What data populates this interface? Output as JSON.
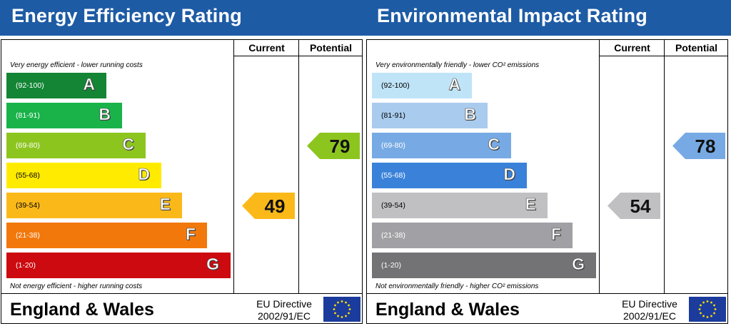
{
  "chart_data": [
    {
      "type": "bar",
      "title": "Energy Efficiency Rating",
      "columns": [
        "Current",
        "Potential"
      ],
      "top_note": "Very energy efficient - lower running costs",
      "bottom_note": "Not energy efficient - higher running costs",
      "bands": [
        {
          "letter": "A",
          "range": "(92-100)",
          "color": "#138535",
          "text_color": "#ffffff"
        },
        {
          "letter": "B",
          "range": "(81-91)",
          "color": "#19b34a",
          "text_color": "#ffffff"
        },
        {
          "letter": "C",
          "range": "(69-80)",
          "color": "#8dc51f",
          "text_color": "#ffffff"
        },
        {
          "letter": "D",
          "range": "(55-68)",
          "color": "#ffeb00",
          "text_color": "#000000"
        },
        {
          "letter": "E",
          "range": "(39-54)",
          "color": "#fbb919",
          "text_color": "#000000"
        },
        {
          "letter": "F",
          "range": "(21-38)",
          "color": "#f2780c",
          "text_color": "#ffffff"
        },
        {
          "letter": "G",
          "range": "(1-20)",
          "color": "#cc0a0f",
          "text_color": "#ffffff"
        }
      ],
      "current": {
        "value": 49,
        "band": "E",
        "color": "#fbb919"
      },
      "potential": {
        "value": 79,
        "band": "C",
        "color": "#8dc51f"
      },
      "footer": {
        "country": "England & Wales",
        "directive_line1": "EU Directive",
        "directive_line2": "2002/91/EC"
      }
    },
    {
      "type": "bar",
      "title": "Environmental Impact Rating",
      "columns": [
        "Current",
        "Potential"
      ],
      "top_note": "Very environmentally friendly - lower CO² emissions",
      "bottom_note": "Not environmentally friendly - higher CO² emissions",
      "bands": [
        {
          "letter": "A",
          "range": "(92-100)",
          "color": "#bfe4f8",
          "text_color": "#000000"
        },
        {
          "letter": "B",
          "range": "(81-91)",
          "color": "#a9ccee",
          "text_color": "#000000"
        },
        {
          "letter": "C",
          "range": "(69-80)",
          "color": "#77aae4",
          "text_color": "#ffffff"
        },
        {
          "letter": "D",
          "range": "(55-68)",
          "color": "#3a82d9",
          "text_color": "#ffffff"
        },
        {
          "letter": "E",
          "range": "(39-54)",
          "color": "#c0c0c2",
          "text_color": "#000000"
        },
        {
          "letter": "F",
          "range": "(21-38)",
          "color": "#a1a0a4",
          "text_color": "#ffffff"
        },
        {
          "letter": "G",
          "range": "(1-20)",
          "color": "#737275",
          "text_color": "#ffffff"
        }
      ],
      "current": {
        "value": 54,
        "band": "E",
        "color": "#c0c0c2"
      },
      "potential": {
        "value": 78,
        "band": "C",
        "color": "#77aae4"
      },
      "footer": {
        "country": "England & Wales",
        "directive_line1": "EU Directive",
        "directive_line2": "2002/91/EC"
      }
    }
  ]
}
